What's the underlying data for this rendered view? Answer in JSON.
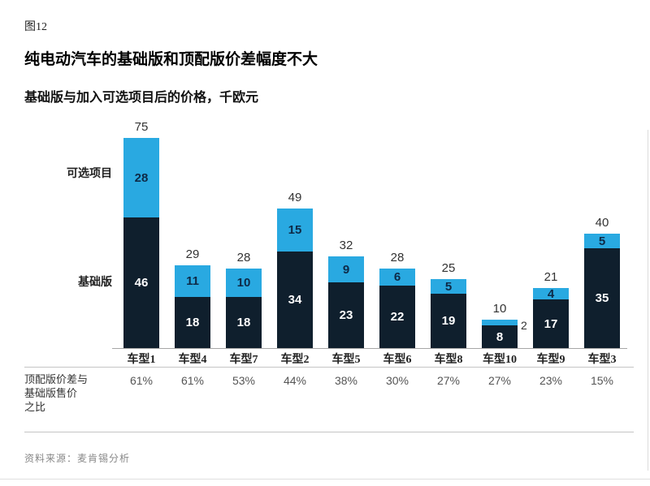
{
  "figure_label": "图12",
  "title": "纯电动汽车的基础版和顶配版价差幅度不大",
  "subtitle": "基础版与加入可选项目后的价格，千欧元",
  "legend": {
    "optional_label": "可选项目",
    "base_label": "基础版"
  },
  "ratio_label_lines": [
    "顶配版价差与",
    "基础版售价",
    "之比"
  ],
  "source": "资料来源：麦肯锡分析",
  "colors": {
    "optional_segment": "#29a9e1",
    "base_segment": "#0f1f2d",
    "label_on_optional": "#0e2a47",
    "label_on_base": "#ffffff",
    "total_label": "#333333",
    "ratio_text": "#555555",
    "axis_line": "#a6a6a6"
  },
  "chart_data": {
    "type": "bar",
    "stacked": true,
    "title": "纯电动汽车的基础版和顶配版价差幅度不大",
    "subtitle": "基础版与加入可选项目后的价格，千欧元",
    "unit": "千欧元",
    "ylim": [
      0,
      80
    ],
    "grid": false,
    "legend_position": "left-of-first-bar",
    "categories": [
      "车型1",
      "车型4",
      "车型7",
      "车型2",
      "车型5",
      "车型6",
      "车型8",
      "车型10",
      "车型9",
      "车型3"
    ],
    "series": [
      {
        "name": "基础版",
        "color": "#0f1f2d",
        "values": [
          46,
          18,
          18,
          34,
          23,
          22,
          19,
          8,
          17,
          35
        ]
      },
      {
        "name": "可选项目",
        "color": "#29a9e1",
        "values": [
          28,
          11,
          10,
          15,
          9,
          6,
          5,
          2,
          4,
          5
        ]
      }
    ],
    "totals": [
      75,
      29,
      28,
      49,
      32,
      28,
      25,
      10,
      21,
      40
    ],
    "ratio_row": {
      "label": "顶配版价差与基础版售价之比",
      "values": [
        "61%",
        "61%",
        "53%",
        "44%",
        "38%",
        "30%",
        "27%",
        "27%",
        "23%",
        "15%"
      ]
    }
  }
}
